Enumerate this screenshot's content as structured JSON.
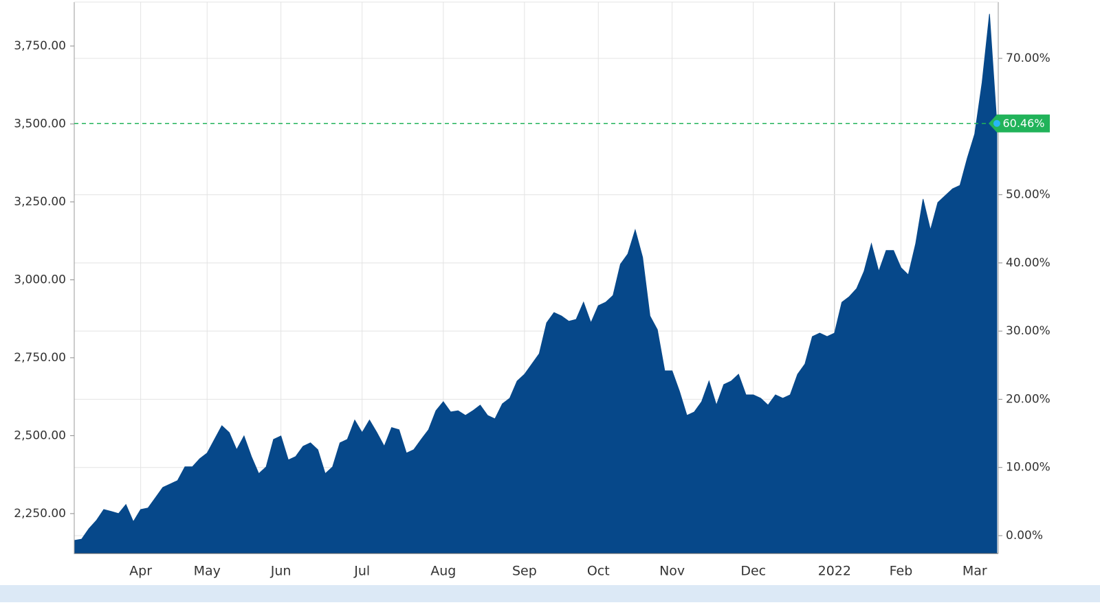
{
  "chart_data": {
    "type": "area",
    "categories": [
      null,
      null,
      null,
      null,
      null,
      null,
      null,
      null,
      null,
      "Apr",
      null,
      null,
      null,
      null,
      null,
      null,
      null,
      null,
      "May",
      null,
      null,
      null,
      null,
      null,
      null,
      null,
      null,
      null,
      "Jun",
      null,
      null,
      null,
      null,
      null,
      null,
      null,
      null,
      null,
      null,
      "Jul",
      null,
      null,
      null,
      null,
      null,
      null,
      null,
      null,
      null,
      null,
      "Aug",
      null,
      null,
      null,
      null,
      null,
      null,
      null,
      null,
      null,
      null,
      "Sep",
      null,
      null,
      null,
      null,
      null,
      null,
      null,
      null,
      null,
      "Oct",
      null,
      null,
      null,
      null,
      null,
      null,
      null,
      null,
      null,
      "Nov",
      null,
      null,
      null,
      null,
      null,
      null,
      null,
      null,
      null,
      null,
      "Dec",
      null,
      null,
      null,
      null,
      null,
      null,
      null,
      null,
      null,
      null,
      "2022",
      null,
      null,
      null,
      null,
      null,
      null,
      null,
      null,
      "Feb",
      null,
      null,
      null,
      null,
      null,
      null,
      null,
      null,
      null,
      "Mar",
      null,
      null,
      null
    ],
    "series": [
      {
        "color": "#06488a",
        "values": [
          2164,
          2168,
          2202,
          2228,
          2263,
          2257,
          2250,
          2279,
          2224,
          2263,
          2268,
          2301,
          2334,
          2345,
          2356,
          2400,
          2400,
          2426,
          2444,
          2488,
          2532,
          2510,
          2455,
          2499,
          2433,
          2378,
          2400,
          2488,
          2499,
          2422,
          2433,
          2466,
          2477,
          2455,
          2378,
          2400,
          2477,
          2488,
          2550,
          2510,
          2550,
          2510,
          2466,
          2526,
          2519,
          2444,
          2455,
          2488,
          2519,
          2580,
          2609,
          2576,
          2580,
          2565,
          2580,
          2598,
          2565,
          2554,
          2602,
          2620,
          2675,
          2697,
          2730,
          2763,
          2862,
          2895,
          2884,
          2867,
          2873,
          2928,
          2862,
          2917,
          2928,
          2950,
          3050,
          3083,
          3160,
          3072,
          2884,
          2840,
          2708,
          2708,
          2642,
          2565,
          2576,
          2609,
          2675,
          2598,
          2664,
          2675,
          2697,
          2631,
          2631,
          2620,
          2598,
          2631,
          2620,
          2631,
          2697,
          2730,
          2818,
          2829,
          2818,
          2829,
          2928,
          2946,
          2972,
          3027,
          3116,
          3027,
          3094,
          3094,
          3039,
          3016,
          3116,
          3259,
          3160,
          3248,
          3270,
          3292,
          3303,
          3391,
          3468,
          3633,
          3853,
          3500
        ]
      }
    ],
    "ylim": [
      2122,
      3891
    ],
    "yticks": [
      {
        "value": 2250,
        "label": "2,250.00"
      },
      {
        "value": 2500,
        "label": "2,500.00"
      },
      {
        "value": 2750,
        "label": "2,750.00"
      },
      {
        "value": 3000,
        "label": "3,000.00"
      },
      {
        "value": 3250,
        "label": "3,250.00"
      },
      {
        "value": 3500,
        "label": "3,500.00"
      },
      {
        "value": 3750,
        "label": "3,750.00"
      }
    ],
    "y2lim": [
      -2.62,
      78.26
    ],
    "y2ticks": [
      {
        "value": 0,
        "label": "0.00%"
      },
      {
        "value": 10,
        "label": "10.00%"
      },
      {
        "value": 20,
        "label": "20.00%"
      },
      {
        "value": 30,
        "label": "30.00%"
      },
      {
        "value": 40,
        "label": "40.00%"
      },
      {
        "value": 50,
        "label": "50.00%"
      },
      {
        "value": 70,
        "label": "70.00%"
      }
    ],
    "current_marker": {
      "value": 60.46,
      "label": "60.46%",
      "color": "#21b35a"
    },
    "grid": true
  }
}
